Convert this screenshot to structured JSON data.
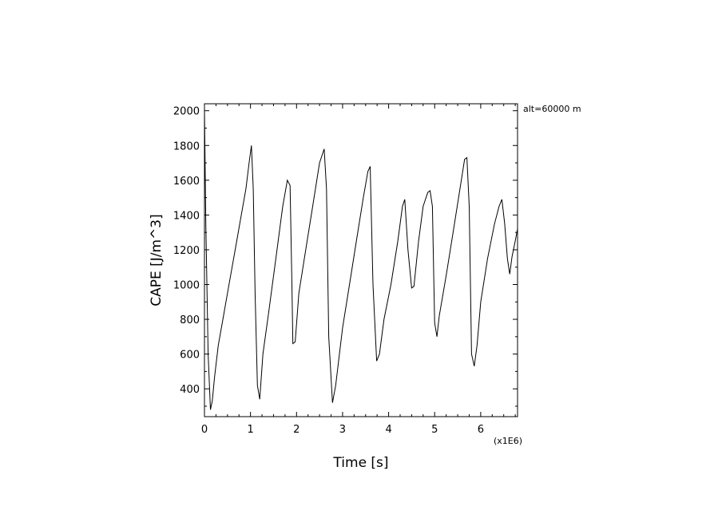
{
  "chart_data": {
    "type": "line",
    "title": "",
    "xlabel": "Time [s]",
    "ylabel": "CAPE [J/m^3]",
    "x_multiplier_label": "(x1E6)",
    "annotation": "alt=60000 m",
    "xlim": [
      0,
      6.8
    ],
    "ylim": [
      240,
      2040
    ],
    "x_ticks": [
      0,
      1,
      2,
      3,
      4,
      5,
      6
    ],
    "y_ticks": [
      400,
      600,
      800,
      1000,
      1200,
      1400,
      1600,
      1800,
      2000
    ],
    "grid": false,
    "legend": "none",
    "line_color": "#000000",
    "series": [
      {
        "x": [
          0.0,
          0.03,
          0.08,
          0.13,
          0.17,
          0.22,
          0.3,
          0.4,
          0.5,
          0.6,
          0.7,
          0.8,
          0.9,
          0.97,
          1.02,
          1.06,
          1.1,
          1.15,
          1.2,
          1.27,
          1.4,
          1.55,
          1.7,
          1.8,
          1.86,
          1.9,
          1.92,
          1.97,
          2.05,
          2.2,
          2.35,
          2.5,
          2.6,
          2.65,
          2.7,
          2.78,
          2.85,
          3.0,
          3.15,
          3.3,
          3.45,
          3.55,
          3.6,
          3.66,
          3.74,
          3.8,
          3.9,
          4.05,
          4.2,
          4.3,
          4.35,
          4.42,
          4.5,
          4.55,
          4.65,
          4.75,
          4.85,
          4.9,
          4.95,
          5.0,
          5.05,
          5.1,
          5.25,
          5.4,
          5.55,
          5.65,
          5.7,
          5.75,
          5.8,
          5.86,
          5.92,
          6.0,
          6.15,
          6.3,
          6.4,
          6.46,
          6.52,
          6.58,
          6.63,
          6.68,
          6.75,
          6.8
        ],
        "y": [
          2000,
          1350,
          600,
          280,
          330,
          470,
          650,
          800,
          950,
          1100,
          1250,
          1400,
          1550,
          1700,
          1800,
          1550,
          950,
          420,
          340,
          600,
          850,
          1150,
          1450,
          1600,
          1570,
          1000,
          660,
          670,
          950,
          1200,
          1450,
          1700,
          1780,
          1550,
          700,
          320,
          420,
          750,
          1000,
          1250,
          1500,
          1650,
          1680,
          1000,
          560,
          600,
          800,
          1000,
          1250,
          1450,
          1490,
          1200,
          980,
          990,
          1250,
          1450,
          1530,
          1540,
          1450,
          780,
          700,
          820,
          1050,
          1300,
          1550,
          1720,
          1730,
          1450,
          600,
          530,
          650,
          900,
          1150,
          1350,
          1450,
          1490,
          1350,
          1150,
          1060,
          1160,
          1250,
          1320
        ]
      }
    ]
  }
}
